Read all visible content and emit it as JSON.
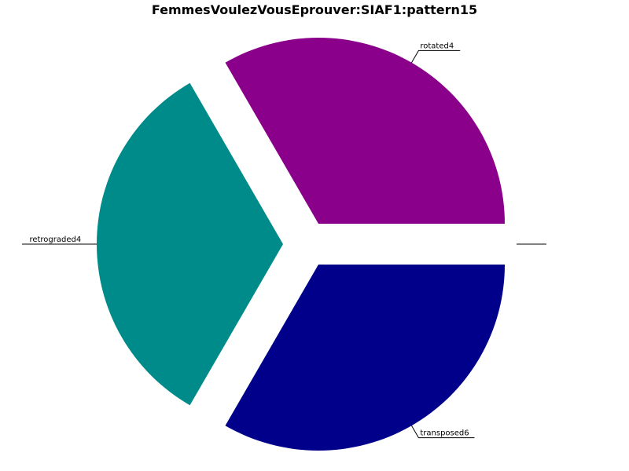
{
  "chart_data": {
    "type": "pie",
    "title": "FemmesVoulezVousEprouver:SIAF1:pattern15",
    "slices": [
      {
        "label": "rotated4",
        "value": 1,
        "color": "#8b008b"
      },
      {
        "label": "retrograded4",
        "value": 1,
        "color": "#008b8b"
      },
      {
        "label": "transposed6",
        "value": 1,
        "color": "#00008b"
      },
      {
        "label": "",
        "value": 0,
        "color": "#ffffff"
      },
      {
        "label": "",
        "value": 0,
        "color": "#ffffff"
      }
    ],
    "start_angle_deg": 0,
    "direction": "counterclockwise",
    "exploded": true,
    "legend": "none"
  }
}
